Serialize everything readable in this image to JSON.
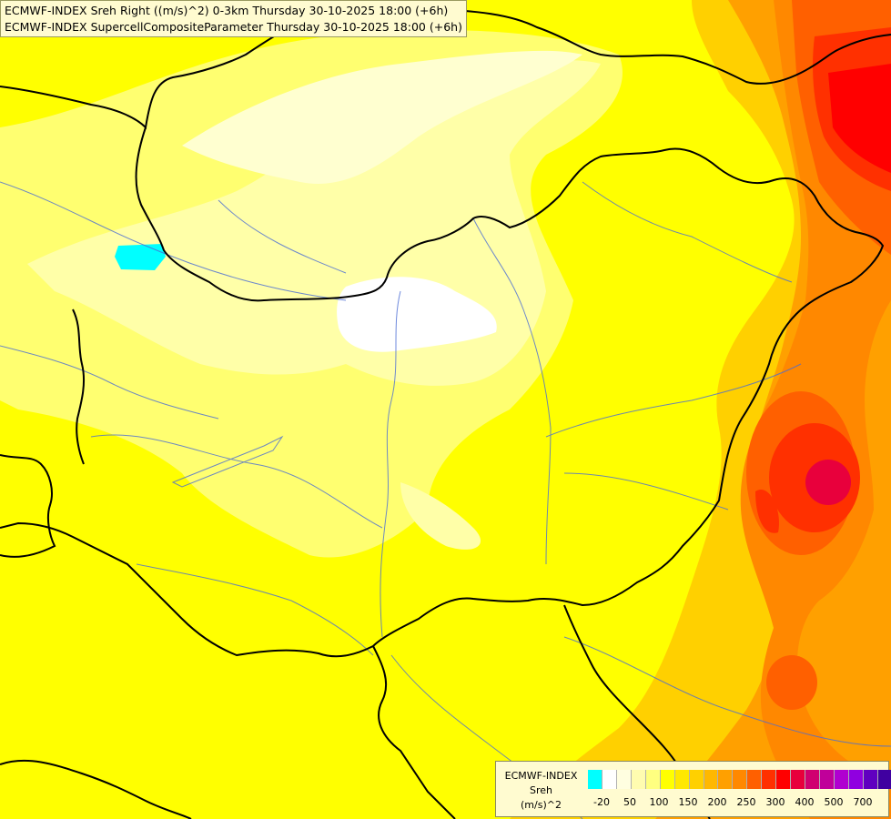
{
  "header": {
    "line1": "ECMWF-INDEX Sreh Right ((m/s)^2) 0-3km Thursday 30-10-2025 18:00 (+6h)",
    "line2": "ECMWF-INDEX SupercellCompositeParameter Thursday 30-10-2025 18:00 (+6h)"
  },
  "legend": {
    "title1": "ECMWF-INDEX",
    "title2": "Sreh",
    "title3": "(m/s)^2",
    "colors": [
      "#00ffff",
      "#ffffff",
      "#fffee0",
      "#fffcb0",
      "#ffff80",
      "#ffff00",
      "#ffe800",
      "#ffd000",
      "#ffb800",
      "#ffa000",
      "#ff8800",
      "#ff6000",
      "#ff3000",
      "#ff0000",
      "#e8003c",
      "#d00070",
      "#c0009a",
      "#b000d0",
      "#9000e0",
      "#6000c0",
      "#4000a0",
      "#20008a",
      "#000080"
    ],
    "ticks": [
      "-20",
      "50",
      "100",
      "150",
      "200",
      "250",
      "300",
      "400",
      "500",
      "700"
    ]
  }
}
